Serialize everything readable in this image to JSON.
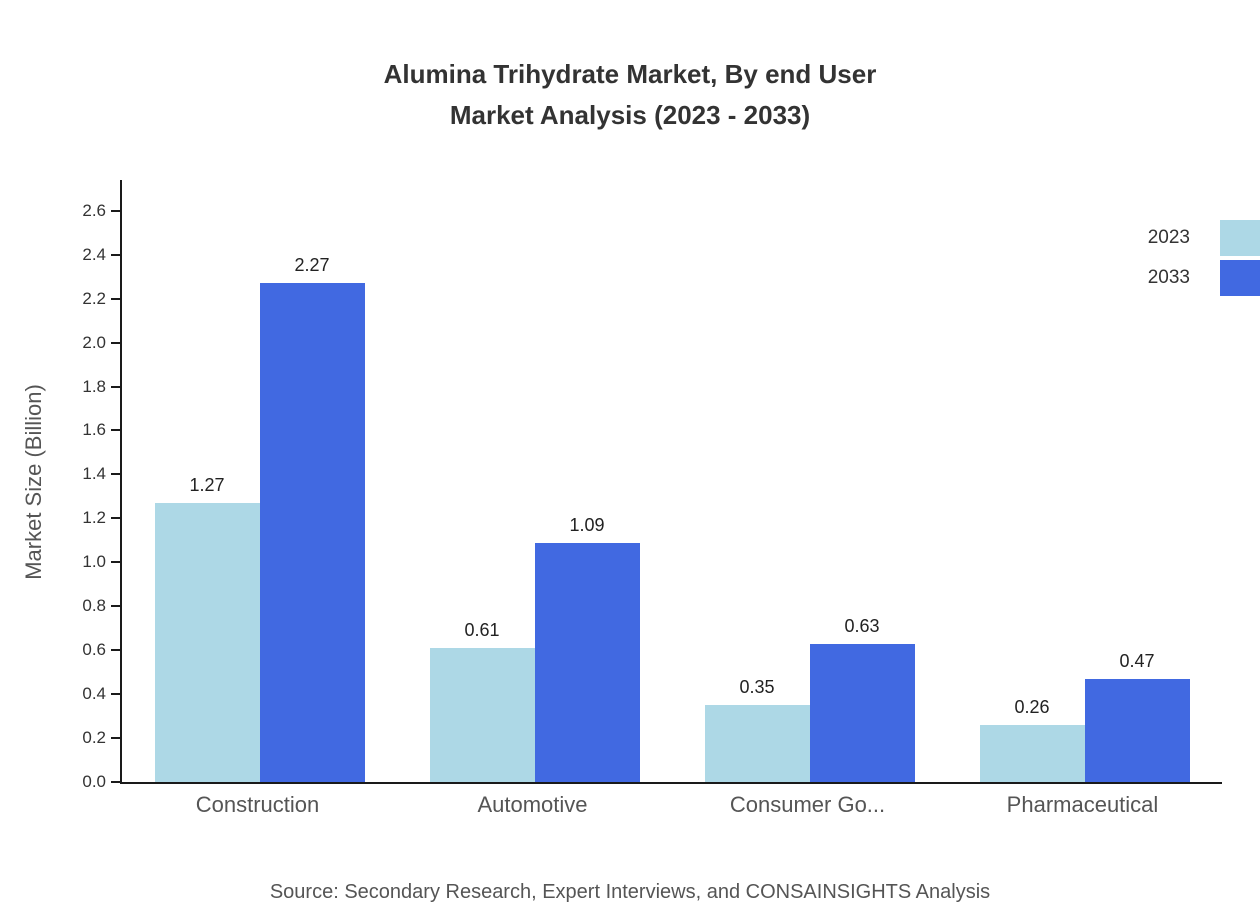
{
  "title": {
    "line1": "Alumina Trihydrate Market, By end User",
    "line2": "Market Analysis (2023 - 2033)"
  },
  "source": "Source: Secondary Research, Expert Interviews, and CONSAINSIGHTS Analysis",
  "chart_data": {
    "type": "bar",
    "categories": [
      "Construction",
      "Automotive",
      "Consumer Go...",
      "Pharmaceutical"
    ],
    "series": [
      {
        "name": "2023",
        "color": "#ADD8E6",
        "values": [
          1.27,
          0.61,
          0.35,
          0.26
        ]
      },
      {
        "name": "2033",
        "color": "#4169E1",
        "values": [
          2.27,
          1.09,
          0.63,
          0.47
        ]
      }
    ],
    "xlabel": "",
    "ylabel": "Market Size (Billion)",
    "yticks": [
      "0.0",
      "0.2",
      "0.4",
      "0.6",
      "0.8",
      "1.0",
      "1.2",
      "1.4",
      "1.6",
      "1.8",
      "2.0",
      "2.2",
      "2.4",
      "2.6"
    ],
    "ylim": [
      0,
      2.74
    ],
    "grid": false,
    "legend_position": "top-right",
    "value_labels": true
  }
}
